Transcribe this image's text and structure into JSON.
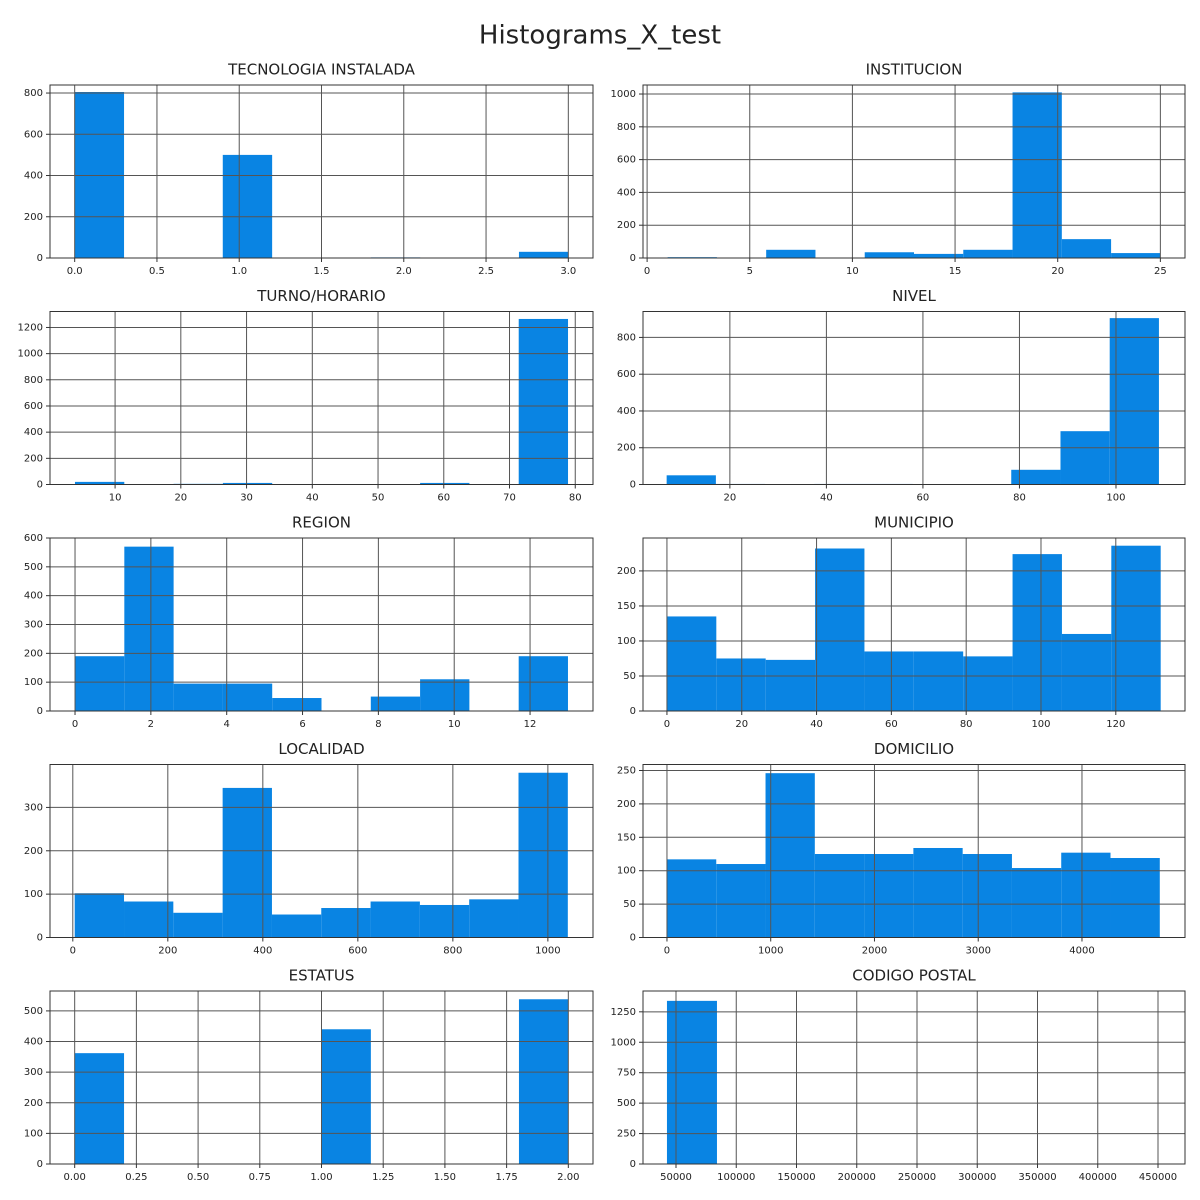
{
  "title": "Histograms_X_test",
  "chart_data": [
    {
      "type": "histogram",
      "title": "TECNOLOGIA INSTALADA",
      "color": "#0984e3",
      "grid": true,
      "bins": [
        0,
        0.3,
        0.6,
        0.9,
        1.2,
        1.5,
        1.8,
        2.1,
        2.4,
        2.7,
        3.0
      ],
      "values": [
        805,
        0,
        0,
        500,
        0,
        0,
        3,
        0,
        0,
        30
      ],
      "xlim": [
        -0.15,
        3.15
      ],
      "ylim": [
        0,
        839
      ],
      "xticks": [
        {
          "value": 0,
          "label": "0.0"
        },
        {
          "value": 0.5,
          "label": "0.5"
        },
        {
          "value": 1,
          "label": "1.0"
        },
        {
          "value": 1.5,
          "label": "1.5"
        },
        {
          "value": 2,
          "label": "2.0"
        },
        {
          "value": 2.5,
          "label": "2.5"
        },
        {
          "value": 3,
          "label": "3.0"
        }
      ],
      "yticks": [
        0,
        200,
        400,
        600,
        800
      ]
    },
    {
      "type": "histogram",
      "title": "INSTITUCION",
      "color": "#0984e3",
      "grid": true,
      "bins": [
        1,
        3.4,
        5.8,
        8.2,
        10.6,
        13,
        15.4,
        17.8,
        20.2,
        22.6,
        25
      ],
      "values": [
        5,
        0,
        50,
        0,
        35,
        25,
        50,
        1010,
        115,
        30
      ],
      "xlim": [
        -0.2,
        26.2
      ],
      "ylim": [
        0,
        1055
      ],
      "xticks": [
        0,
        5,
        10,
        15,
        20,
        25
      ],
      "yticks": [
        0,
        200,
        400,
        600,
        800,
        1000
      ]
    },
    {
      "type": "histogram",
      "title": "TURNO/HORARIO",
      "color": "#0984e3",
      "grid": true,
      "bins": [
        3.9,
        11.4,
        18.9,
        26.4,
        33.9,
        41.4,
        48.9,
        56.4,
        63.9,
        71.4,
        78.9
      ],
      "values": [
        20,
        0,
        5,
        12,
        0,
        0,
        0,
        12,
        0,
        1265
      ],
      "xlim": [
        0.1,
        82.7
      ],
      "ylim": [
        0,
        1322
      ],
      "xticks": [
        10,
        20,
        30,
        40,
        50,
        60,
        70,
        80
      ],
      "yticks": [
        0,
        200,
        400,
        600,
        800,
        1000,
        1200
      ]
    },
    {
      "type": "histogram",
      "title": "NIVEL",
      "color": "#0984e3",
      "grid": true,
      "bins": [
        6.9,
        17.1,
        27.3,
        37.5,
        47.7,
        57.9,
        68.1,
        78.3,
        88.5,
        98.7,
        108.9
      ],
      "values": [
        50,
        3,
        0,
        3,
        3,
        0,
        0,
        80,
        290,
        905
      ],
      "xlim": [
        2,
        114.3
      ],
      "ylim": [
        0,
        941
      ],
      "xticks": [
        20,
        40,
        60,
        80,
        100
      ],
      "yticks": [
        0,
        200,
        400,
        600,
        800
      ]
    },
    {
      "type": "histogram",
      "title": "REGION",
      "color": "#0984e3",
      "grid": true,
      "bins": [
        0,
        1.3,
        2.6,
        3.9,
        5.2,
        6.5,
        7.8,
        9.1,
        10.4,
        11.7,
        13
      ],
      "values": [
        190,
        570,
        95,
        95,
        45,
        0,
        50,
        110,
        0,
        190
      ],
      "xlim": [
        -0.66,
        13.66
      ],
      "ylim": [
        0,
        600
      ],
      "xticks": [
        0,
        2,
        4,
        6,
        8,
        10,
        12
      ],
      "yticks": [
        0,
        100,
        200,
        300,
        400,
        500,
        600
      ]
    },
    {
      "type": "histogram",
      "title": "MUNICIPIO",
      "color": "#0984e3",
      "grid": true,
      "bins": [
        0,
        13.2,
        26.4,
        39.6,
        52.8,
        66,
        79.2,
        92.4,
        105.6,
        118.8,
        132
      ],
      "values": [
        135,
        75,
        73,
        232,
        85,
        85,
        78,
        224,
        110,
        236
      ],
      "xlim": [
        -6.4,
        138.5
      ],
      "ylim": [
        0,
        247
      ],
      "xticks": [
        0,
        20,
        40,
        60,
        80,
        100,
        120
      ],
      "yticks": [
        0,
        50,
        100,
        150,
        200
      ]
    },
    {
      "type": "histogram",
      "title": "LOCALIDAD",
      "color": "#0984e3",
      "grid": true,
      "bins": [
        4,
        107.8,
        211.6,
        315.4,
        419.2,
        523,
        626.8,
        730.6,
        834.4,
        938.2,
        1042
      ],
      "values": [
        102,
        83,
        57,
        345,
        53,
        68,
        83,
        75,
        88,
        380
      ],
      "xlim": [
        -48,
        1095
      ],
      "ylim": [
        0,
        399
      ],
      "xticks": [
        0,
        200,
        400,
        600,
        800,
        1000
      ],
      "yticks": [
        0,
        100,
        200,
        300
      ]
    },
    {
      "type": "histogram",
      "title": "DOMICILIO",
      "color": "#0984e3",
      "grid": true,
      "bins": [
        0,
        475,
        950,
        1425,
        1900,
        2375,
        2850,
        3325,
        3800,
        4275,
        4750
      ],
      "values": [
        117,
        110,
        246,
        125,
        125,
        134,
        125,
        104,
        127,
        119
      ],
      "xlim": [
        -231,
        4993
      ],
      "ylim": [
        0,
        259
      ],
      "xticks": [
        0,
        1000,
        2000,
        3000,
        4000
      ],
      "yticks": [
        0,
        50,
        100,
        150,
        200,
        250
      ]
    },
    {
      "type": "histogram",
      "title": "ESTATUS",
      "color": "#0984e3",
      "grid": true,
      "bins": [
        0,
        0.2,
        0.4,
        0.6,
        0.8,
        1.0,
        1.2,
        1.4,
        1.6,
        1.8,
        2.0
      ],
      "values": [
        362,
        0,
        0,
        0,
        0,
        440,
        0,
        0,
        0,
        538
      ],
      "xlim": [
        -0.1,
        2.1
      ],
      "ylim": [
        0,
        565
      ],
      "xticks": [
        {
          "value": 0,
          "label": "0.00"
        },
        {
          "value": 0.25,
          "label": "0.25"
        },
        {
          "value": 0.5,
          "label": "0.50"
        },
        {
          "value": 0.75,
          "label": "0.75"
        },
        {
          "value": 1,
          "label": "1.00"
        },
        {
          "value": 1.25,
          "label": "1.25"
        },
        {
          "value": 1.5,
          "label": "1.50"
        },
        {
          "value": 1.75,
          "label": "1.75"
        },
        {
          "value": 2,
          "label": "2.00"
        }
      ],
      "yticks": [
        0,
        100,
        200,
        300,
        400,
        500
      ]
    },
    {
      "type": "histogram",
      "title": "CODIGO POSTAL",
      "color": "#0984e3",
      "grid": true,
      "bins": [
        42500,
        84000,
        125500,
        167000,
        208500,
        250000,
        291500,
        333000,
        374500,
        416000,
        457500
      ],
      "values": [
        1340,
        0,
        0,
        0,
        0,
        0,
        0,
        0,
        0,
        0
      ],
      "xlim": [
        22614,
        472407
      ],
      "ylim": [
        0,
        1421
      ],
      "xticks": [
        50000,
        100000,
        150000,
        200000,
        250000,
        300000,
        350000,
        400000,
        450000
      ],
      "yticks": [
        0,
        250,
        500,
        750,
        1000,
        1250
      ]
    }
  ]
}
